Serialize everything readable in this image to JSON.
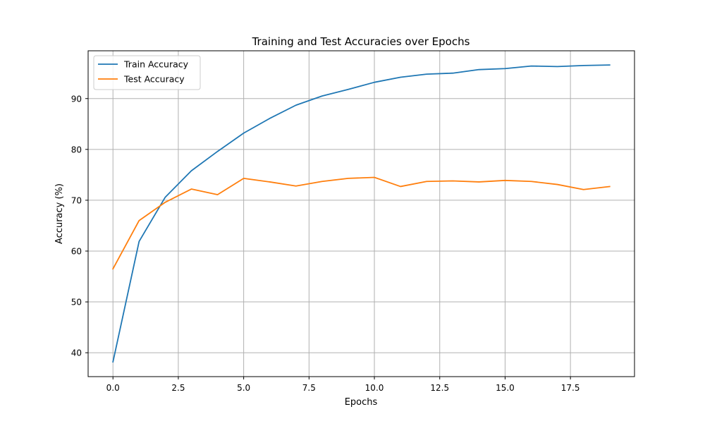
{
  "chart_data": {
    "type": "line",
    "title": "Training and Test Accuracies over Epochs",
    "xlabel": "Epochs",
    "ylabel": "Accuracy (%)",
    "xlim": [
      -0.95,
      19.95
    ],
    "ylim": [
      35.3,
      99.4
    ],
    "xticks": [
      0,
      2.5,
      5,
      7.5,
      10,
      12.5,
      15,
      17.5
    ],
    "xtick_labels": [
      "0.0",
      "2.5",
      "5.0",
      "7.5",
      "10.0",
      "12.5",
      "15.0",
      "17.5"
    ],
    "yticks": [
      40,
      50,
      60,
      70,
      80,
      90
    ],
    "ytick_labels": [
      "40",
      "50",
      "60",
      "70",
      "80",
      "90"
    ],
    "grid": true,
    "legend_position": "upper-left",
    "x": [
      0,
      1,
      2,
      3,
      4,
      5,
      6,
      7,
      8,
      9,
      10,
      11,
      12,
      13,
      14,
      15,
      16,
      17,
      18,
      19
    ],
    "series": [
      {
        "name": "Train Accuracy",
        "color": "#1f77b4",
        "values": [
          38.2,
          61.9,
          70.6,
          75.8,
          79.6,
          83.2,
          86.1,
          88.7,
          90.5,
          91.8,
          93.2,
          94.2,
          94.8,
          95.0,
          95.7,
          95.9,
          96.4,
          96.3,
          96.5,
          96.6
        ]
      },
      {
        "name": "Test Accuracy",
        "color": "#ff7f0e",
        "values": [
          56.5,
          66.0,
          69.6,
          72.2,
          71.1,
          74.3,
          73.6,
          72.8,
          73.7,
          74.3,
          74.5,
          72.7,
          73.7,
          73.8,
          73.6,
          73.9,
          73.7,
          73.1,
          72.1,
          72.7
        ]
      }
    ]
  }
}
